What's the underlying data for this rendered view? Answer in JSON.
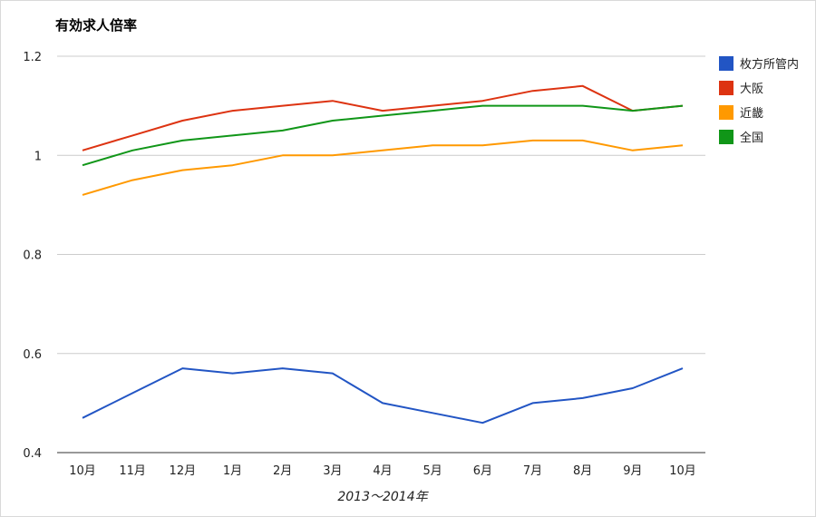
{
  "chart_data": {
    "type": "line",
    "title": "有効求人倍率",
    "xlabel": "2013〜2014年",
    "ylabel": "",
    "categories": [
      "10月",
      "11月",
      "12月",
      "1月",
      "2月",
      "3月",
      "4月",
      "5月",
      "6月",
      "7月",
      "8月",
      "9月",
      "10月"
    ],
    "ylim": [
      0.4,
      1.2
    ],
    "yticks": [
      "0.4",
      "0.6",
      "0.8",
      "1",
      "1.2"
    ],
    "grid": true,
    "legend_position": "right",
    "series": [
      {
        "name": "枚方所管内",
        "color": "#2255c4",
        "values": [
          0.47,
          0.52,
          0.57,
          0.56,
          0.57,
          0.56,
          0.5,
          0.48,
          0.46,
          0.5,
          0.51,
          0.53,
          0.57
        ]
      },
      {
        "name": "大阪",
        "color": "#dd3311",
        "values": [
          1.01,
          1.04,
          1.07,
          1.09,
          1.1,
          1.11,
          1.09,
          1.1,
          1.11,
          1.13,
          1.14,
          1.09,
          1.1
        ]
      },
      {
        "name": "近畿",
        "color": "#ff9900",
        "values": [
          0.92,
          0.95,
          0.97,
          0.98,
          1.0,
          1.0,
          1.01,
          1.02,
          1.02,
          1.03,
          1.03,
          1.01,
          1.02
        ]
      },
      {
        "name": "全国",
        "color": "#109618",
        "values": [
          0.98,
          1.01,
          1.03,
          1.04,
          1.05,
          1.07,
          1.08,
          1.09,
          1.1,
          1.1,
          1.1,
          1.09,
          1.1
        ]
      }
    ]
  }
}
